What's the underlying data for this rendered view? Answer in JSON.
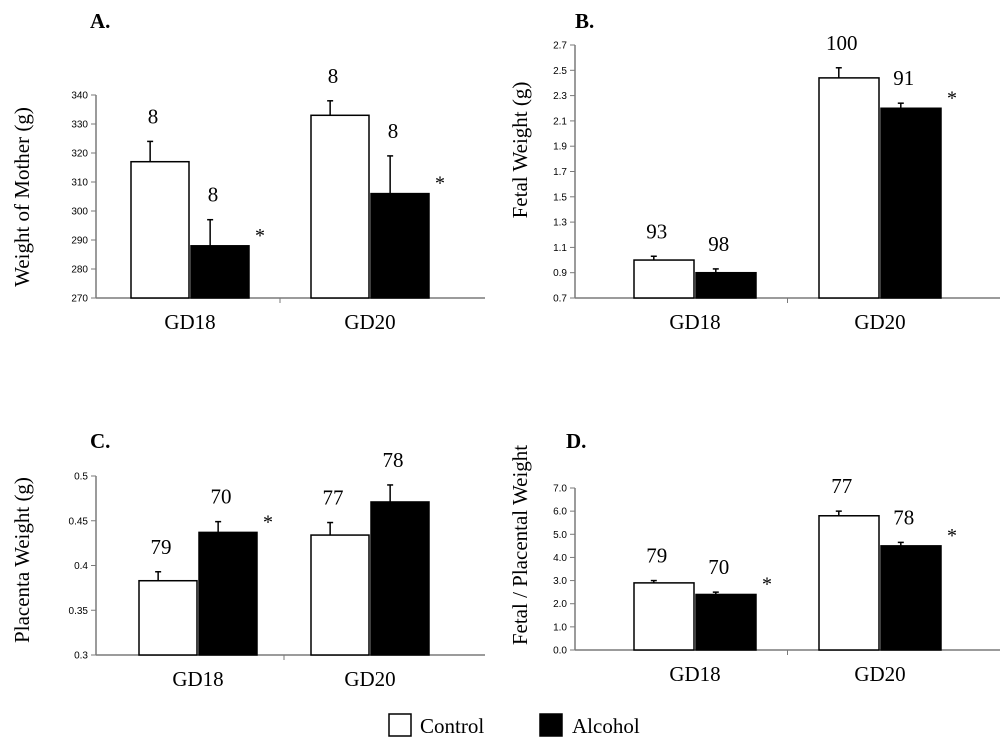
{
  "chart_data": [
    {
      "panel": "A.",
      "type": "bar",
      "ylabel": "Weight of Mother (g)",
      "xlabel": "",
      "ylim": [
        270,
        340
      ],
      "yticks": [
        "270",
        "280",
        "290",
        "300",
        "310",
        "320",
        "330",
        "340"
      ],
      "categories": [
        "GD18",
        "GD20"
      ],
      "series": [
        {
          "name": "Control",
          "values": [
            317,
            333
          ],
          "errors": [
            7,
            5
          ],
          "n_labels": [
            "8",
            "8"
          ],
          "significant": [
            false,
            false
          ]
        },
        {
          "name": "Alcohol",
          "values": [
            288,
            306
          ],
          "errors": [
            9,
            13
          ],
          "n_labels": [
            "8",
            "8"
          ],
          "significant": [
            true,
            true
          ]
        }
      ]
    },
    {
      "panel": "B.",
      "type": "bar",
      "ylabel": "Fetal Weight (g)",
      "xlabel": "",
      "ylim": [
        0.7,
        2.7
      ],
      "yticks": [
        "0.7",
        "0.9",
        "1.1",
        "1.3",
        "1.5",
        "1.7",
        "1.9",
        "2.1",
        "2.3",
        "2.5",
        "2.7"
      ],
      "categories": [
        "GD18",
        "GD20"
      ],
      "series": [
        {
          "name": "Control",
          "values": [
            1.0,
            2.44
          ],
          "errors": [
            0.03,
            0.08
          ],
          "n_labels": [
            "93",
            "100"
          ],
          "significant": [
            false,
            false
          ]
        },
        {
          "name": "Alcohol",
          "values": [
            0.9,
            2.2
          ],
          "errors": [
            0.03,
            0.04
          ],
          "n_labels": [
            "98",
            "91"
          ],
          "significant": [
            false,
            true
          ]
        }
      ]
    },
    {
      "panel": "C.",
      "type": "bar",
      "ylabel": "Placenta Weight (g)",
      "xlabel": "",
      "ylim": [
        0.3,
        0.5
      ],
      "yticks": [
        "0.3",
        "0.35",
        "0.4",
        "0.45",
        "0.5"
      ],
      "categories": [
        "GD18",
        "GD20"
      ],
      "series": [
        {
          "name": "Control",
          "values": [
            0.383,
            0.434
          ],
          "errors": [
            0.01,
            0.014
          ],
          "n_labels": [
            "79",
            "77"
          ],
          "significant": [
            false,
            false
          ]
        },
        {
          "name": "Alcohol",
          "values": [
            0.437,
            0.471
          ],
          "errors": [
            0.012,
            0.019
          ],
          "n_labels": [
            "70",
            "78"
          ],
          "significant": [
            true,
            false
          ]
        }
      ]
    },
    {
      "panel": "D.",
      "type": "bar",
      "ylabel": "Fetal / Placental Weight",
      "xlabel": "",
      "ylim": [
        0.0,
        7.0
      ],
      "yticks": [
        "0.0",
        "1.0",
        "2.0",
        "3.0",
        "4.0",
        "5.0",
        "6.0",
        "7.0"
      ],
      "categories": [
        "GD18",
        "GD20"
      ],
      "series": [
        {
          "name": "Control",
          "values": [
            2.9,
            5.8
          ],
          "errors": [
            0.1,
            0.2
          ],
          "n_labels": [
            "79",
            "77"
          ],
          "significant": [
            false,
            false
          ]
        },
        {
          "name": "Alcohol",
          "values": [
            2.4,
            4.5
          ],
          "errors": [
            0.1,
            0.15
          ],
          "n_labels": [
            "70",
            "78"
          ],
          "significant": [
            true,
            true
          ]
        }
      ]
    }
  ],
  "significance_marker": "*",
  "legend": {
    "placement": "bottom-center",
    "items": [
      {
        "label": "Control",
        "color": "#ffffff"
      },
      {
        "label": "Alcohol",
        "color": "#000000"
      }
    ]
  },
  "colors": {
    "control_fill": "#ffffff",
    "alcohol_fill": "#000000",
    "axis": "#7a7a7a",
    "text": "#000000"
  }
}
